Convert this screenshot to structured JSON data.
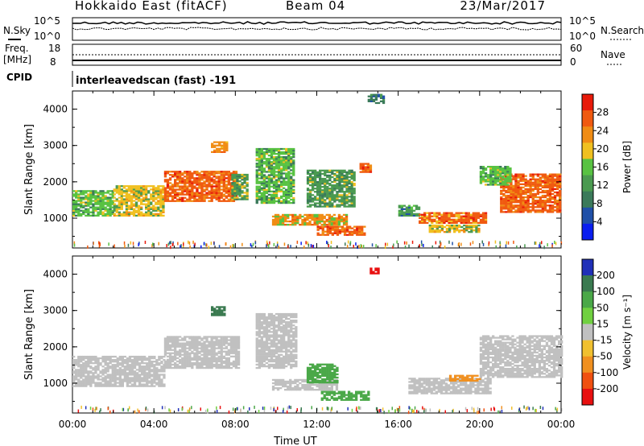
{
  "header": {
    "title": "Hokkaido East (fitACF)",
    "beam": "Beam 04",
    "date": "23/Mar/2017"
  },
  "status_panel": {
    "nsky_label": "N.Sky",
    "nsearch_label": "N.Search",
    "noise_ticks": [
      "10^5",
      "10^0"
    ],
    "freq_label": "Freq.",
    "freq_unit": "[MHz]",
    "freq_ticks": [
      "18",
      "8"
    ],
    "nave_label": "Nave",
    "nave_ticks": [
      "60",
      "0"
    ],
    "cpid_label": "CPID",
    "cpid_text": "interleavedscan (fast) -191"
  },
  "colors": {
    "power": [
      "#0a1ef0",
      "#2050a8",
      "#3b7a5a",
      "#4a9a50",
      "#58c242",
      "#f0c020",
      "#f08c14",
      "#f05a10",
      "#e81a0a"
    ],
    "velocity": [
      "#2030b8",
      "#3a7a50",
      "#4aa848",
      "#70d040",
      "#c0c0c0",
      "#f0c030",
      "#f09020",
      "#f05010",
      "#e81010"
    ]
  },
  "chart_data": [
    {
      "type": "heatmap",
      "name": "power",
      "xlabel": "",
      "ylabel": "Slant Range [km]",
      "x_range": [
        "00:00",
        "24:00"
      ],
      "ylim": [
        180,
        4500
      ],
      "y_ticks": [
        1000,
        2000,
        3000,
        4000
      ],
      "colorbar": {
        "label": "Power [dB]",
        "range": [
          0,
          32
        ],
        "ticks": [
          4,
          8,
          12,
          16,
          20,
          24,
          28
        ]
      },
      "regions": [
        {
          "t0": 0.0,
          "t1": 2.0,
          "r0": 1050,
          "r1": 1750,
          "level": 16
        },
        {
          "t0": 2.0,
          "t1": 4.5,
          "r0": 1050,
          "r1": 1900,
          "level": 18
        },
        {
          "t0": 4.5,
          "t1": 8.0,
          "r0": 1450,
          "r1": 2300,
          "level": 28
        },
        {
          "t0": 6.8,
          "t1": 7.6,
          "r0": 2800,
          "r1": 3100,
          "level": 24
        },
        {
          "t0": 7.8,
          "t1": 8.6,
          "r0": 1500,
          "r1": 2200,
          "level": 14
        },
        {
          "t0": 9.0,
          "t1": 10.8,
          "r0": 1400,
          "r1": 2900,
          "level": 16
        },
        {
          "t0": 9.8,
          "t1": 13.5,
          "r0": 800,
          "r1": 1100,
          "level": 22
        },
        {
          "t0": 11.5,
          "t1": 13.8,
          "r0": 1300,
          "r1": 2300,
          "level": 14
        },
        {
          "t0": 12.0,
          "t1": 14.3,
          "r0": 520,
          "r1": 750,
          "level": 28
        },
        {
          "t0": 14.1,
          "t1": 14.6,
          "r0": 2250,
          "r1": 2500,
          "level": 28
        },
        {
          "t0": 14.5,
          "t1": 15.3,
          "r0": 4150,
          "r1": 4400,
          "level": 10
        },
        {
          "t0": 16.0,
          "t1": 17.0,
          "r0": 1050,
          "r1": 1350,
          "level": 12
        },
        {
          "t0": 17.0,
          "t1": 20.3,
          "r0": 850,
          "r1": 1150,
          "level": 26
        },
        {
          "t0": 17.5,
          "t1": 20.0,
          "r0": 600,
          "r1": 800,
          "level": 18
        },
        {
          "t0": 21.0,
          "t1": 24.0,
          "r0": 1150,
          "r1": 2200,
          "level": 28
        },
        {
          "t0": 20.0,
          "t1": 21.5,
          "r0": 1900,
          "r1": 2400,
          "level": 16
        }
      ]
    },
    {
      "type": "heatmap",
      "name": "velocity",
      "xlabel": "Time UT",
      "ylabel": "Slant Range [km]",
      "x_ticks": [
        "00:00",
        "04:00",
        "08:00",
        "12:00",
        "16:00",
        "20:00",
        "00:00"
      ],
      "ylim": [
        180,
        4500
      ],
      "y_ticks": [
        1000,
        2000,
        3000,
        4000
      ],
      "colorbar": {
        "label": "Velocity [m s⁻¹]",
        "range": [
          -300,
          300
        ],
        "ticks": [
          200,
          100,
          50,
          15,
          -15,
          -50,
          -100,
          -200
        ]
      },
      "regions": [
        {
          "t0": 0.0,
          "t1": 4.5,
          "r0": 900,
          "r1": 1750,
          "level": 0
        },
        {
          "t0": 4.5,
          "t1": 8.2,
          "r0": 1400,
          "r1": 2300,
          "level": 0
        },
        {
          "t0": 6.8,
          "t1": 7.5,
          "r0": 2850,
          "r1": 3100,
          "level": 80
        },
        {
          "t0": 9.0,
          "t1": 11.0,
          "r0": 1400,
          "r1": 2900,
          "level": 0
        },
        {
          "t0": 9.8,
          "t1": 13.0,
          "r0": 800,
          "r1": 1100,
          "level": 0
        },
        {
          "t0": 11.5,
          "t1": 13.0,
          "r0": 1000,
          "r1": 1500,
          "level": 40
        },
        {
          "t0": 12.2,
          "t1": 14.5,
          "r0": 520,
          "r1": 760,
          "level": 40
        },
        {
          "t0": 14.6,
          "t1": 15.0,
          "r0": 4000,
          "r1": 4150,
          "level": -250
        },
        {
          "t0": 16.5,
          "t1": 20.5,
          "r0": 700,
          "r1": 1150,
          "level": 0
        },
        {
          "t0": 18.5,
          "t1": 20.0,
          "r0": 1050,
          "r1": 1200,
          "level": -40
        },
        {
          "t0": 20.0,
          "t1": 24.0,
          "r0": 1150,
          "r1": 2300,
          "level": 0
        }
      ]
    }
  ]
}
